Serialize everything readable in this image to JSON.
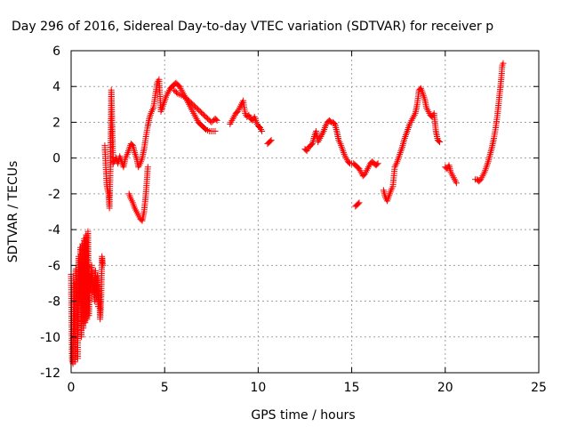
{
  "chart_data": {
    "type": "scatter",
    "title": "Day 296 of 2016, Sidereal Day-to-day VTEC variation (SDTVAR) for receiver p",
    "xlabel": "GPS time / hours",
    "ylabel": "SDTVAR / TECUs",
    "xlim": [
      0,
      25
    ],
    "ylim": [
      -12,
      6
    ],
    "xticks": [
      "0",
      "5",
      "10",
      "15",
      "20",
      "25"
    ],
    "yticks": [
      "-12",
      "-10",
      "-8",
      "-6",
      "-4",
      "-2",
      "0",
      "2",
      "4",
      "6"
    ],
    "grid": true,
    "marker": "+",
    "color": "#ff0000",
    "segments": [
      [
        [
          0.0,
          -6.5
        ],
        [
          0.05,
          -11.3
        ],
        [
          0.1,
          -11.5
        ],
        [
          0.15,
          -7.0
        ],
        [
          0.2,
          -11.4
        ],
        [
          0.25,
          -6.2
        ],
        [
          0.3,
          -7.5
        ],
        [
          0.35,
          -11.2
        ],
        [
          0.4,
          -5.5
        ],
        [
          0.45,
          -8.0
        ],
        [
          0.5,
          -5.0
        ],
        [
          0.55,
          -10.0
        ],
        [
          0.6,
          -4.8
        ],
        [
          0.65,
          -9.5
        ],
        [
          0.7,
          -4.5
        ],
        [
          0.75,
          -9.2
        ],
        [
          0.8,
          -4.3
        ],
        [
          0.85,
          -9.0
        ],
        [
          0.9,
          -4.1
        ],
        [
          0.95,
          -8.8
        ],
        [
          1.0,
          -6.5
        ],
        [
          1.05,
          -7.0
        ],
        [
          1.1,
          -6.0
        ],
        [
          1.15,
          -7.5
        ],
        [
          1.2,
          -6.8
        ],
        [
          1.25,
          -8.0
        ],
        [
          1.3,
          -6.3
        ],
        [
          1.35,
          -7.8
        ],
        [
          1.4,
          -6.6
        ],
        [
          1.45,
          -8.3
        ],
        [
          1.5,
          -7.2
        ],
        [
          1.55,
          -9.0
        ],
        [
          1.6,
          -8.0
        ],
        [
          1.65,
          -5.5
        ],
        [
          1.7,
          -6.0
        ]
      ],
      [
        [
          1.8,
          0.7
        ],
        [
          1.9,
          -1.5
        ],
        [
          2.0,
          -2.0
        ],
        [
          2.05,
          -2.8
        ],
        [
          2.1,
          -0.5
        ],
        [
          2.15,
          3.8
        ],
        [
          2.2,
          1.5
        ],
        [
          2.25,
          -0.3
        ],
        [
          2.3,
          -0.2
        ],
        [
          2.4,
          0.0
        ],
        [
          2.5,
          -0.3
        ],
        [
          2.6,
          0.1
        ],
        [
          2.7,
          -0.2
        ],
        [
          2.8,
          -0.5
        ],
        [
          2.9,
          0.0
        ],
        [
          3.0,
          0.2
        ],
        [
          3.1,
          0.5
        ],
        [
          3.2,
          0.8
        ],
        [
          3.3,
          0.7
        ],
        [
          3.4,
          0.3
        ],
        [
          3.5,
          0.0
        ],
        [
          3.6,
          -0.5
        ],
        [
          3.7,
          -0.3
        ],
        [
          3.8,
          0.0
        ],
        [
          3.9,
          0.5
        ],
        [
          4.0,
          1.2
        ],
        [
          4.1,
          1.8
        ],
        [
          4.2,
          2.3
        ],
        [
          4.3,
          2.6
        ],
        [
          4.4,
          2.8
        ],
        [
          4.5,
          3.5
        ],
        [
          4.6,
          4.2
        ],
        [
          4.7,
          4.4
        ],
        [
          4.8,
          2.6
        ],
        [
          4.9,
          2.9
        ],
        [
          5.0,
          3.2
        ],
        [
          5.1,
          3.5
        ],
        [
          5.2,
          3.7
        ],
        [
          5.3,
          3.9
        ],
        [
          5.4,
          4.0
        ],
        [
          5.5,
          4.1
        ],
        [
          5.6,
          4.2
        ],
        [
          5.7,
          4.1
        ],
        [
          5.8,
          4.0
        ],
        [
          5.9,
          3.8
        ],
        [
          6.0,
          3.6
        ],
        [
          6.1,
          3.4
        ],
        [
          6.2,
          3.2
        ],
        [
          6.3,
          3.0
        ],
        [
          6.4,
          2.8
        ],
        [
          6.5,
          2.6
        ],
        [
          6.6,
          2.4
        ],
        [
          6.7,
          2.2
        ],
        [
          6.8,
          2.0
        ],
        [
          6.9,
          1.9
        ],
        [
          7.0,
          1.8
        ],
        [
          7.1,
          1.7
        ],
        [
          7.2,
          1.6
        ],
        [
          7.3,
          1.55
        ],
        [
          7.4,
          1.5
        ],
        [
          7.5,
          1.5
        ],
        [
          7.6,
          1.5
        ],
        [
          7.7,
          1.5
        ]
      ],
      [
        [
          3.1,
          -2.0
        ],
        [
          3.2,
          -2.3
        ],
        [
          3.3,
          -2.5
        ],
        [
          3.4,
          -2.8
        ],
        [
          3.5,
          -3.0
        ],
        [
          3.6,
          -3.2
        ],
        [
          3.7,
          -3.4
        ],
        [
          3.8,
          -3.5
        ],
        [
          3.9,
          -3.0
        ],
        [
          4.0,
          -2.0
        ],
        [
          4.1,
          -0.5
        ]
      ],
      [
        [
          5.5,
          3.8
        ],
        [
          5.7,
          3.6
        ],
        [
          5.9,
          3.5
        ],
        [
          6.1,
          3.4
        ],
        [
          6.3,
          3.2
        ],
        [
          6.5,
          3.0
        ],
        [
          6.7,
          2.8
        ],
        [
          6.9,
          2.6
        ],
        [
          7.1,
          2.4
        ],
        [
          7.3,
          2.2
        ],
        [
          7.5,
          2.0
        ],
        [
          7.7,
          2.2
        ],
        [
          7.8,
          2.1
        ]
      ],
      [
        [
          8.5,
          1.9
        ],
        [
          8.6,
          2.1
        ],
        [
          8.7,
          2.3
        ],
        [
          8.8,
          2.5
        ],
        [
          8.9,
          2.6
        ],
        [
          9.0,
          2.8
        ],
        [
          9.1,
          3.0
        ],
        [
          9.2,
          3.2
        ],
        [
          9.3,
          2.5
        ],
        [
          9.4,
          2.3
        ],
        [
          9.5,
          2.4
        ],
        [
          9.6,
          2.2
        ],
        [
          9.7,
          2.1
        ],
        [
          9.8,
          2.3
        ],
        [
          9.9,
          2.0
        ],
        [
          10.0,
          1.8
        ],
        [
          10.1,
          1.7
        ],
        [
          10.2,
          1.5
        ]
      ],
      [
        [
          10.5,
          0.8
        ],
        [
          10.6,
          0.9
        ],
        [
          10.7,
          1.0
        ]
      ],
      [
        [
          12.5,
          0.5
        ],
        [
          12.6,
          0.4
        ],
        [
          12.7,
          0.6
        ],
        [
          12.8,
          0.7
        ],
        [
          12.9,
          0.8
        ],
        [
          13.0,
          1.2
        ],
        [
          13.1,
          1.5
        ],
        [
          13.2,
          0.9
        ],
        [
          13.5,
          1.5
        ],
        [
          13.6,
          1.8
        ],
        [
          13.7,
          2.0
        ],
        [
          13.8,
          2.1
        ],
        [
          13.9,
          2.0
        ],
        [
          14.0,
          2.0
        ],
        [
          14.1,
          1.9
        ],
        [
          14.2,
          1.5
        ],
        [
          14.3,
          1.0
        ],
        [
          14.4,
          0.8
        ],
        [
          14.5,
          0.5
        ],
        [
          14.6,
          0.2
        ],
        [
          14.7,
          0.0
        ],
        [
          14.8,
          -0.2
        ],
        [
          14.9,
          -0.3
        ],
        [
          15.0,
          -0.3
        ],
        [
          15.1,
          -0.3
        ],
        [
          15.2,
          -0.4
        ],
        [
          15.3,
          -0.5
        ],
        [
          15.4,
          -0.6
        ],
        [
          15.5,
          -0.8
        ],
        [
          15.6,
          -1.0
        ],
        [
          15.7,
          -0.9
        ],
        [
          15.8,
          -0.7
        ],
        [
          15.9,
          -0.5
        ],
        [
          16.0,
          -0.3
        ],
        [
          16.1,
          -0.2
        ],
        [
          16.2,
          -0.3
        ],
        [
          16.3,
          -0.4
        ],
        [
          16.4,
          -0.3
        ]
      ],
      [
        [
          15.2,
          -2.7
        ],
        [
          15.3,
          -2.6
        ],
        [
          15.4,
          -2.5
        ]
      ],
      [
        [
          16.7,
          -1.8
        ],
        [
          16.8,
          -2.2
        ],
        [
          16.9,
          -2.4
        ],
        [
          17.0,
          -2.1
        ],
        [
          17.1,
          -1.8
        ],
        [
          17.2,
          -1.6
        ],
        [
          17.3,
          -0.5
        ],
        [
          17.4,
          -0.3
        ],
        [
          17.5,
          0.0
        ],
        [
          17.6,
          0.3
        ],
        [
          17.7,
          0.6
        ],
        [
          17.8,
          1.0
        ],
        [
          17.9,
          1.3
        ],
        [
          18.0,
          1.6
        ],
        [
          18.1,
          1.9
        ],
        [
          18.2,
          2.1
        ],
        [
          18.3,
          2.3
        ],
        [
          18.4,
          2.5
        ],
        [
          18.5,
          3.0
        ],
        [
          18.6,
          3.8
        ],
        [
          18.7,
          3.9
        ],
        [
          18.8,
          3.6
        ],
        [
          18.9,
          3.3
        ],
        [
          19.0,
          2.8
        ],
        [
          19.1,
          2.6
        ],
        [
          19.2,
          2.4
        ],
        [
          19.3,
          2.3
        ],
        [
          19.4,
          2.5
        ],
        [
          19.5,
          1.5
        ],
        [
          19.6,
          1.0
        ],
        [
          19.7,
          0.9
        ]
      ],
      [
        [
          20.0,
          -0.5
        ],
        [
          20.1,
          -0.6
        ],
        [
          20.2,
          -0.4
        ],
        [
          20.3,
          -0.8
        ],
        [
          20.4,
          -1.0
        ],
        [
          20.5,
          -1.2
        ],
        [
          20.6,
          -1.4
        ]
      ],
      [
        [
          21.6,
          -1.2
        ],
        [
          21.7,
          -1.2
        ],
        [
          21.8,
          -1.3
        ],
        [
          21.9,
          -1.2
        ],
        [
          22.0,
          -1.0
        ],
        [
          22.1,
          -0.8
        ],
        [
          22.2,
          -0.5
        ],
        [
          22.3,
          -0.2
        ],
        [
          22.4,
          0.2
        ],
        [
          22.5,
          0.6
        ],
        [
          22.6,
          1.1
        ],
        [
          22.7,
          1.7
        ],
        [
          22.8,
          2.5
        ],
        [
          22.9,
          3.5
        ],
        [
          23.0,
          4.5
        ],
        [
          23.05,
          5.2
        ],
        [
          23.1,
          5.3
        ]
      ]
    ]
  }
}
